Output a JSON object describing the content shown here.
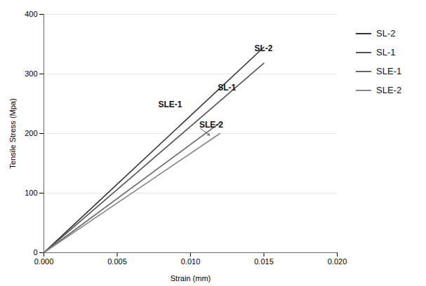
{
  "chart_data": {
    "type": "line",
    "xlabel": "Strain (mm)",
    "ylabel": "Tensile Stress (Mpa)",
    "xlim": [
      0.0,
      0.02
    ],
    "ylim": [
      0,
      400
    ],
    "xticks": [
      {
        "value": 0.0,
        "label": "0.000"
      },
      {
        "value": 0.005,
        "label": "0.005"
      },
      {
        "value": 0.01,
        "label": "0.010"
      },
      {
        "value": 0.015,
        "label": "0.015"
      },
      {
        "value": 0.02,
        "label": "0.020"
      }
    ],
    "yticks": [
      0,
      100,
      200,
      300,
      400
    ],
    "grid": "y",
    "legend": "right",
    "series": [
      {
        "name": "SL-2",
        "color": "#333333",
        "x": [
          0.0,
          0.015
        ],
        "values": [
          0.0,
          345
        ]
      },
      {
        "name": "SL-1",
        "color": "#555555",
        "x": [
          0.0,
          0.015
        ],
        "values": [
          0.0,
          318
        ]
      },
      {
        "name": "SLE-1",
        "color": "#666666",
        "x": [
          0.0,
          0.012
        ],
        "values": [
          0.0,
          218
        ]
      },
      {
        "name": "SLE-2",
        "color": "#888888",
        "x": [
          0.0,
          0.012
        ],
        "values": [
          0.0,
          200
        ]
      }
    ],
    "annotations": [
      {
        "text": "SL-1",
        "x": 0.01185,
        "y": 272
      },
      {
        "text": "SL-2",
        "x": 0.01435,
        "y": 338
      },
      {
        "text": "SLE-1",
        "x": 0.0078,
        "y": 244
      },
      {
        "text": "SLE-2",
        "x": 0.0106,
        "y": 210,
        "arrow_x": 0.0113,
        "arrow_y": 197
      }
    ]
  }
}
